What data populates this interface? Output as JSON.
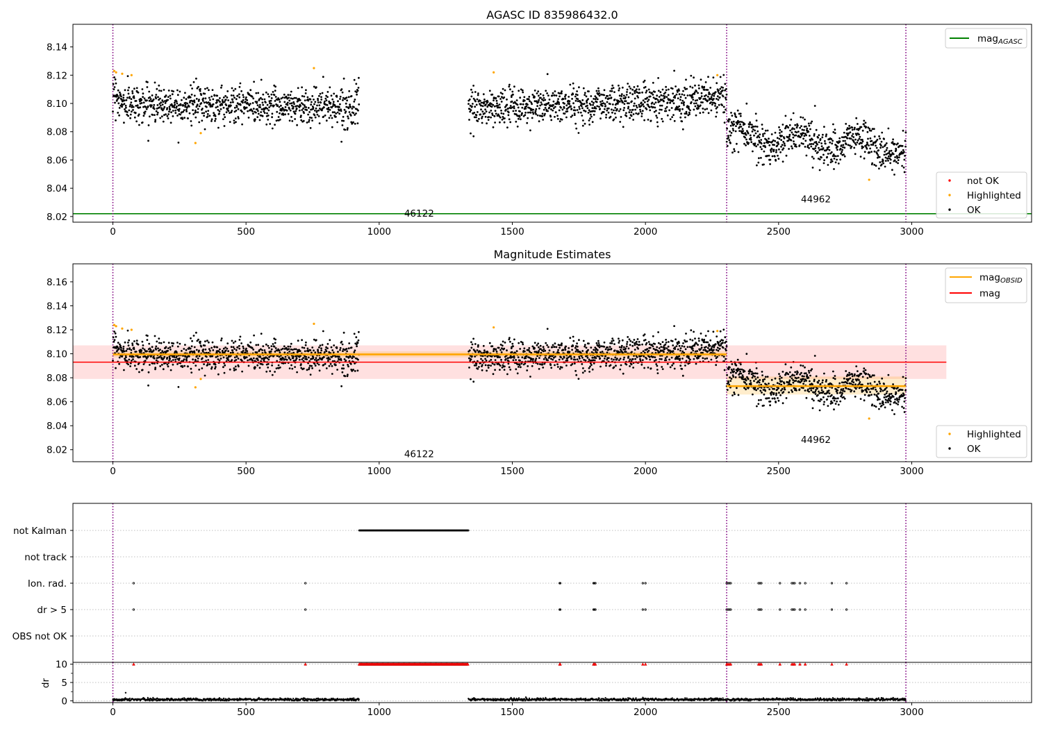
{
  "chart_data": [
    {
      "type": "scatter",
      "title": "AGASC ID 835986432.0",
      "xlabel": "",
      "ylabel": "",
      "xlim": [
        -150,
        3450
      ],
      "ylim": [
        8.016,
        8.156
      ],
      "xticks": [
        "0",
        "500",
        "1000",
        "1500",
        "2000",
        "2500",
        "3000"
      ],
      "yticks": [
        "8.02",
        "8.04",
        "8.06",
        "8.08",
        "8.10",
        "8.12",
        "8.14"
      ],
      "obsid_boundaries": [
        0,
        2305,
        2978
      ],
      "obsid_labels": [
        {
          "text": "46122",
          "x": 1150,
          "y": 8.022
        },
        {
          "text": "44962",
          "x": 2640,
          "y": 8.032
        }
      ],
      "mag_agasc": 8.022,
      "segments": [
        {
          "x_start": 0,
          "x_end": 925,
          "mean": 8.099,
          "sd": 0.0065,
          "slope": -2.5e-06
        },
        {
          "x_start": 1335,
          "x_end": 2305,
          "mean": 8.1,
          "sd": 0.0065,
          "slope": 8e-06
        },
        {
          "x_start": 2305,
          "x_end": 2978,
          "mean": 8.073,
          "sd": 0.0068,
          "slope": -1.5e-05
        }
      ],
      "highlighted": [
        [
          5,
          8.123
        ],
        [
          12,
          8.122
        ],
        [
          35,
          8.121
        ],
        [
          70,
          8.12
        ],
        [
          310,
          8.072
        ],
        [
          330,
          8.079
        ],
        [
          755,
          8.125
        ],
        [
          1430,
          8.122
        ],
        [
          2270,
          8.12
        ],
        [
          2840,
          8.046
        ]
      ],
      "legend_markers": [
        {
          "label": "not OK",
          "color": "#ff0000"
        },
        {
          "label": "Highlighted",
          "color": "#ffa500"
        },
        {
          "label": "OK",
          "color": "#000000"
        }
      ],
      "legend_lines": [
        {
          "label": "mag",
          "sub": "AGASC",
          "color": "#008000"
        }
      ]
    },
    {
      "type": "scatter",
      "title": "Magnitude Estimates",
      "xlabel": "",
      "ylabel": "",
      "xlim": [
        -150,
        3450
      ],
      "ylim": [
        8.01,
        8.175
      ],
      "xticks": [
        "0",
        "500",
        "1000",
        "1500",
        "2000",
        "2500",
        "3000"
      ],
      "yticks": [
        "8.02",
        "8.04",
        "8.06",
        "8.08",
        "8.10",
        "8.12",
        "8.14",
        "8.16"
      ],
      "obsid_boundaries": [
        0,
        2305,
        2978
      ],
      "obsid_labels": [
        {
          "text": "46122",
          "x": 1150,
          "y": 8.016
        },
        {
          "text": "44962",
          "x": 2640,
          "y": 8.028
        }
      ],
      "mag": 8.093,
      "mag_band": [
        8.079,
        8.107
      ],
      "mag_band_x": [
        -150,
        3130
      ],
      "mag_obsid": [
        {
          "x_start": 0,
          "x_end": 2305,
          "value": 8.0995,
          "band": [
            8.097,
            8.102
          ]
        },
        {
          "x_start": 2305,
          "x_end": 2978,
          "value": 8.073,
          "band": [
            8.066,
            8.081
          ]
        }
      ],
      "highlighted": [
        [
          5,
          8.124
        ],
        [
          12,
          8.123
        ],
        [
          35,
          8.121
        ],
        [
          70,
          8.12
        ],
        [
          310,
          8.072
        ],
        [
          330,
          8.079
        ],
        [
          755,
          8.125
        ],
        [
          1430,
          8.122
        ],
        [
          2270,
          8.119
        ],
        [
          2840,
          8.046
        ]
      ],
      "legend_markers": [
        {
          "label": "Highlighted",
          "color": "#ffa500"
        },
        {
          "label": "OK",
          "color": "#000000"
        }
      ],
      "legend_lines": [
        {
          "label": "mag",
          "sub": "OBSID",
          "color": "#ffa500"
        },
        {
          "label": "mag",
          "sub": "",
          "color": "#ff0000"
        }
      ]
    },
    {
      "type": "scatter",
      "title": "",
      "xlabel": "",
      "ylabel": "",
      "xlim": [
        -150,
        3450
      ],
      "flag_rows": [
        "not Kalman",
        "not track",
        "Ion. rad.",
        "dr > 5",
        "OBS not OK"
      ],
      "flags": {
        "not Kalman": {
          "ranges": [
            [
              925,
              1335
            ]
          ]
        },
        "not track": {
          "ranges": []
        },
        "Ion. rad.": {
          "x": [
            78,
            723,
            1678,
            1680,
            1805,
            1808,
            1812,
            1990,
            2000,
            2305,
            2310,
            2315,
            2320,
            2425,
            2430,
            2435,
            2505,
            2550,
            2555,
            2560,
            2580,
            2600,
            2700,
            2755
          ]
        },
        "dr > 5": {
          "x": [
            78,
            723,
            1678,
            1680,
            1805,
            1808,
            1812,
            1990,
            2000,
            2305,
            2310,
            2315,
            2320,
            2425,
            2430,
            2435,
            2505,
            2550,
            2555,
            2560,
            2580,
            2600,
            2700,
            2755
          ]
        },
        "OBS not OK": {
          "x": []
        }
      },
      "obsid_boundaries": [
        0,
        2305,
        2978
      ]
    },
    {
      "type": "scatter",
      "title": "",
      "xlabel": "",
      "ylabel": "dr",
      "xlim": [
        -150,
        3450
      ],
      "ylim": [
        -0.5,
        10.5
      ],
      "xticks": [
        "0",
        "500",
        "1000",
        "1500",
        "2000",
        "2500",
        "3000"
      ],
      "yticks": [
        "0",
        "5",
        "10"
      ],
      "gap": [
        925,
        1335
      ],
      "saturated_x": [
        78,
        723,
        1678,
        1680,
        1805,
        1808,
        1812,
        1990,
        2000,
        2305,
        2310,
        2315,
        2320,
        2425,
        2430,
        2435,
        2505,
        2550,
        2555,
        2560,
        2580,
        2600,
        2700,
        2755
      ],
      "outliers": [
        [
          48,
          2.2
        ]
      ],
      "obsid_boundaries": [
        0,
        2305,
        2978
      ]
    }
  ]
}
